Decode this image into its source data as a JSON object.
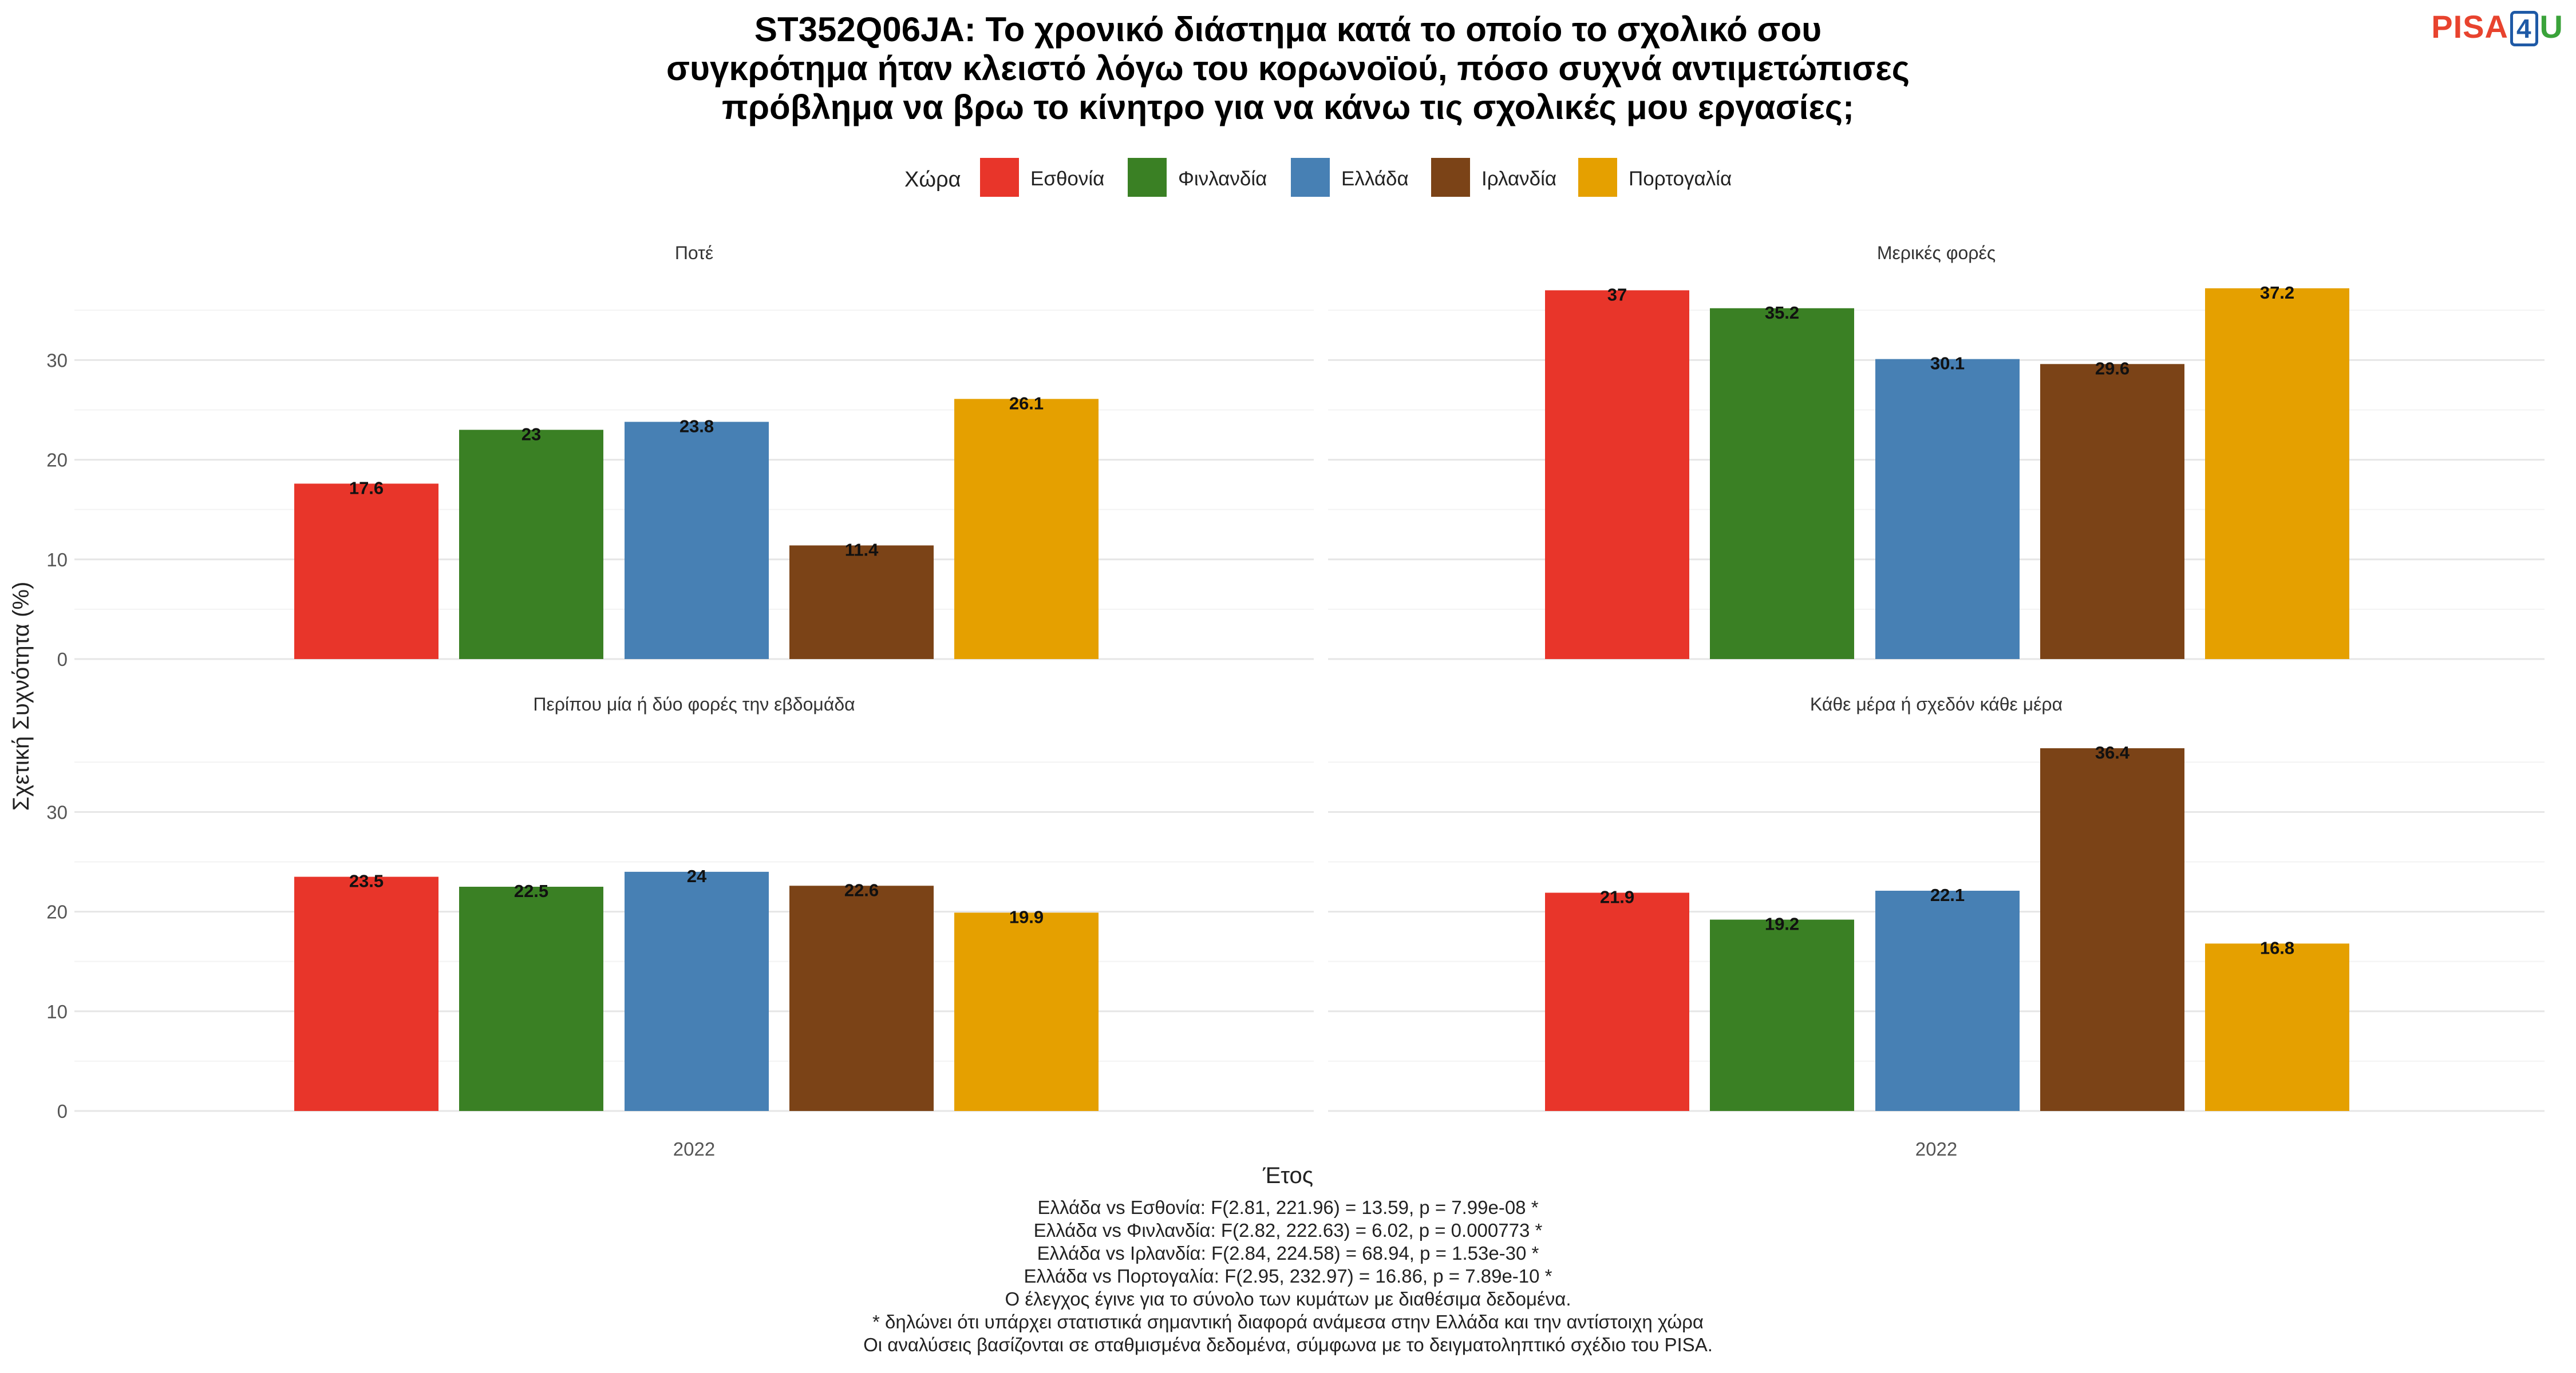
{
  "brand": {
    "left": "PISA",
    "middle": "4",
    "right": "U"
  },
  "title_lines": [
    "ST352Q06JA: Το χρονικό διάστημα κατά το οποίο το σχολικό σου",
    "συγκρότημα ήταν κλειστό λόγω του κορωνοϊού, πόσο συχνά αντιμετώπισες",
    "πρόβλημα να βρω το κίνητρο για να κάνω τις σχολικές μου εργασίες;"
  ],
  "legend": {
    "title": "Χώρα"
  },
  "colors": {
    "Εσθονία": "#e8352a",
    "Φινλανδία": "#3a8024",
    "Ελλάδα": "#4780b4",
    "Ιρλανδία": "#7b4317",
    "Πορτογαλία": "#e5a000"
  },
  "chart_data": {
    "type": "bar",
    "xlabel": "Έτος",
    "ylabel": "Σχετική Συχνότητα (%)",
    "ylim": [
      0,
      38
    ],
    "yticks": [
      0,
      10,
      20,
      30
    ],
    "grid": true,
    "legend_position": "top",
    "categories": [
      "Εσθονία",
      "Φινλανδία",
      "Ελλάδα",
      "Ιρλανδία",
      "Πορτογαλία"
    ],
    "x_tick": "2022",
    "panels": [
      {
        "title": "Ποτέ",
        "values": [
          17.6,
          23,
          23.8,
          11.4,
          26.1
        ],
        "labels": [
          "17.6",
          "23",
          "23.8",
          "11.4",
          "26.1"
        ]
      },
      {
        "title": "Μερικές φορές",
        "values": [
          37,
          35.2,
          30.1,
          29.6,
          37.2
        ],
        "labels": [
          "37",
          "35.2",
          "30.1",
          "29.6",
          "37.2"
        ]
      },
      {
        "title": "Περίπου μία ή δύο φορές την εβδομάδα",
        "values": [
          23.5,
          22.5,
          24,
          22.6,
          19.9
        ],
        "labels": [
          "23.5",
          "22.5",
          "24",
          "22.6",
          "19.9"
        ]
      },
      {
        "title": "Κάθε μέρα ή σχεδόν κάθε μέρα",
        "values": [
          21.9,
          19.2,
          22.1,
          36.4,
          16.8
        ],
        "labels": [
          "21.9",
          "19.2",
          "22.1",
          "36.4",
          "16.8"
        ]
      }
    ]
  },
  "footnotes": [
    "Ελλάδα vs Εσθονία: F(2.81, 221.96) = 13.59, p = 7.99e-08 *",
    "Ελλάδα vs Φινλανδία: F(2.82, 222.63) = 6.02, p = 0.000773 *",
    "Ελλάδα vs Ιρλανδία: F(2.84, 224.58) = 68.94, p = 1.53e-30 *",
    "Ελλάδα vs Πορτογαλία: F(2.95, 232.97) = 16.86, p = 7.89e-10 *",
    "Ο έλεγχος έγινε για το σύνολο των κυμάτων με διαθέσιμα δεδομένα.",
    "* δηλώνει ότι υπάρχει στατιστικά σημαντική διαφορά ανάμεσα στην Ελλάδα και την αντίστοιχη χώρα",
    "Οι αναλύσεις βασίζονται σε σταθμισμένα δεδομένα, σύμφωνα με το δειγματοληπτικό σχέδιο του PISA."
  ]
}
